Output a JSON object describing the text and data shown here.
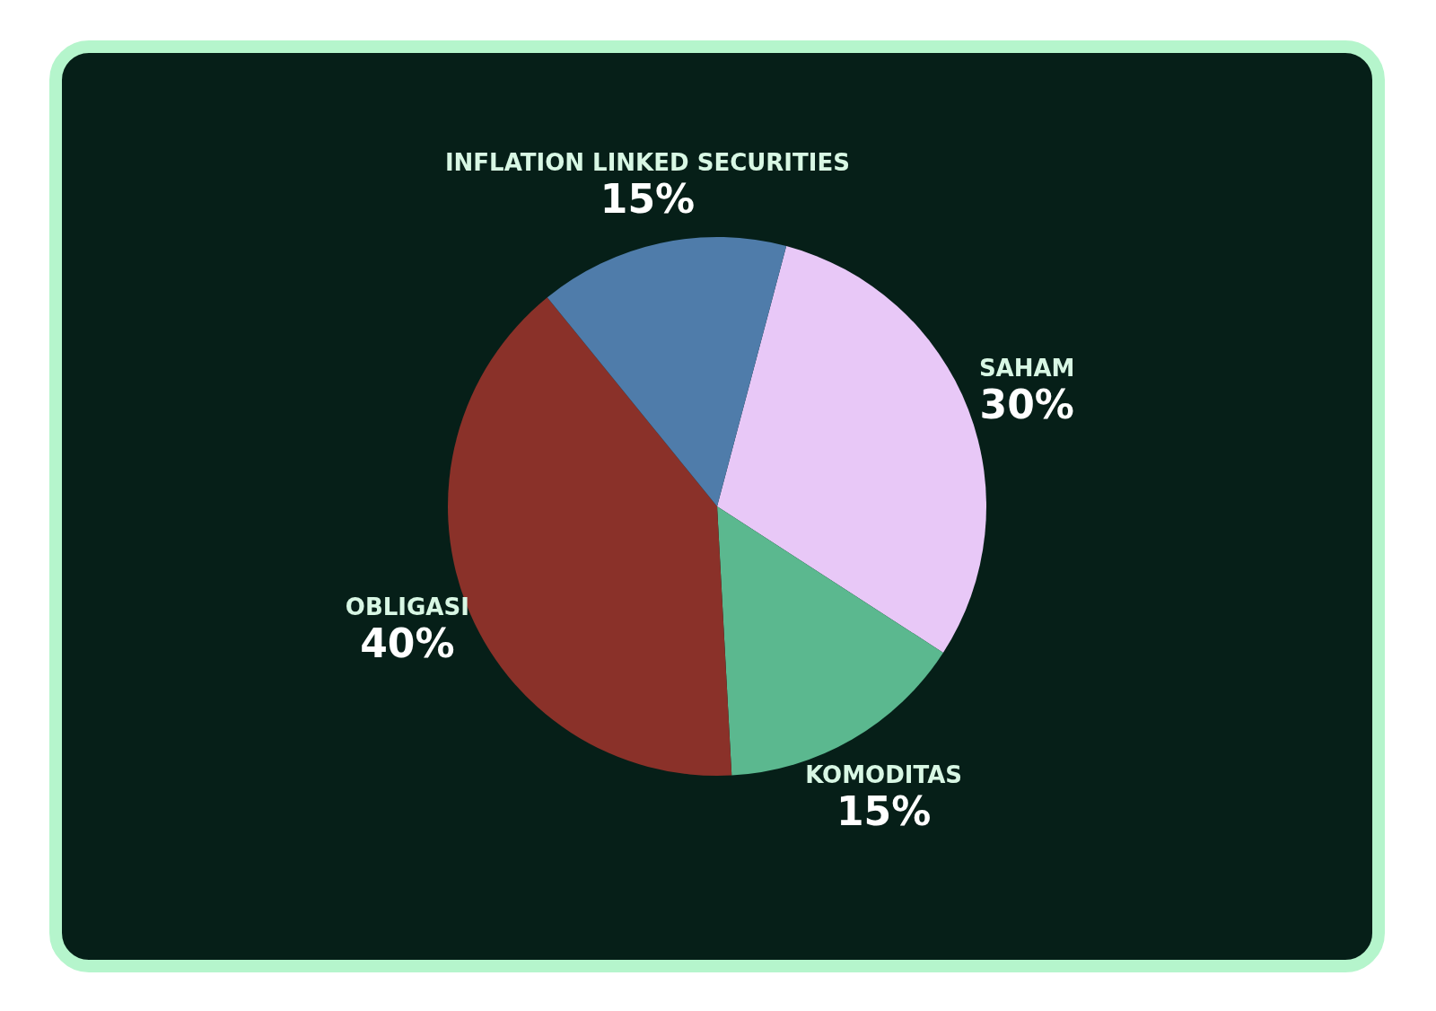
{
  "chart_data": {
    "type": "pie",
    "categories": [
      "SAHAM",
      "KOMODITAS",
      "OBLIGASI",
      "INFLATION LINKED SECURITIES"
    ],
    "values": [
      30,
      15,
      40,
      15
    ],
    "colors": [
      "#e8c8f7",
      "#5bb88f",
      "#8a3129",
      "#4f7caa"
    ],
    "value_labels": [
      "30%",
      "15%",
      "40%",
      "15%"
    ],
    "legend": false
  }
}
